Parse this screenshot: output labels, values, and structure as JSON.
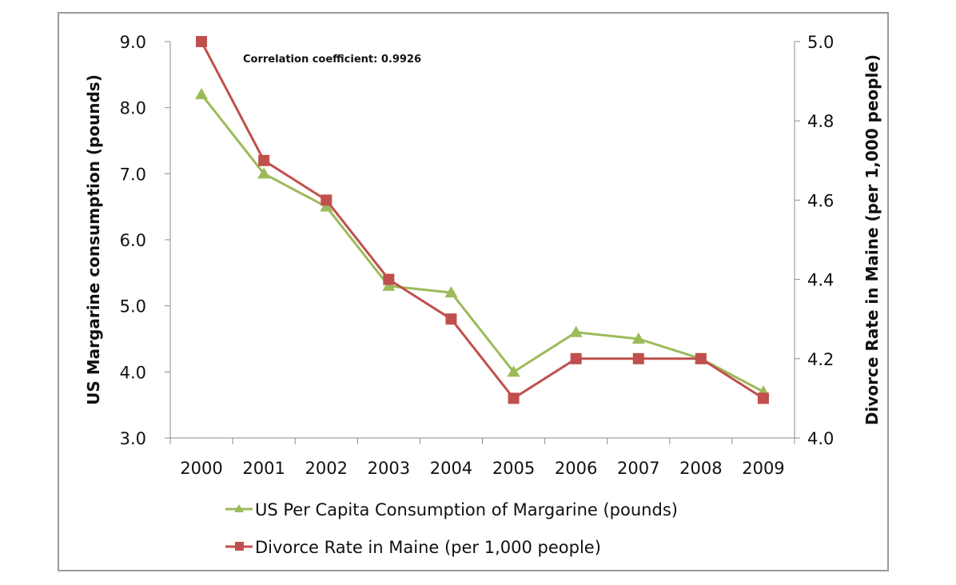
{
  "chart_data": {
    "type": "line",
    "title": "",
    "annotation": "Correlation coefficient: 0.9926",
    "categories": [
      "2000",
      "2001",
      "2002",
      "2003",
      "2004",
      "2005",
      "2006",
      "2007",
      "2008",
      "2009"
    ],
    "xlabel": "",
    "ylabel_left": "US Margarine consumption (pounds)",
    "ylabel_right": "Divorce Rate in Maine (per 1,000 people)",
    "ylim_left": [
      3.0,
      9.0
    ],
    "ylim_right": [
      4.0,
      5.0
    ],
    "yticks_left": [
      "3.0",
      "4.0",
      "5.0",
      "6.0",
      "7.0",
      "8.0",
      "9.0"
    ],
    "yticks_right": [
      "4.0",
      "4.2",
      "4.4",
      "4.6",
      "4.8",
      "5.0"
    ],
    "grid": false,
    "legend_position": "bottom",
    "series": [
      {
        "name": "US Per Capita Consumption of Margarine (pounds)",
        "axis": "left",
        "marker": "triangle",
        "color": "#9bbb59",
        "values": [
          8.2,
          7.0,
          6.5,
          5.3,
          5.2,
          4.0,
          4.6,
          4.5,
          4.2,
          3.7
        ]
      },
      {
        "name": "Divorce Rate in Maine (per 1,000 people)",
        "axis": "right",
        "marker": "square",
        "color": "#c0504d",
        "values": [
          5.0,
          4.7,
          4.6,
          4.4,
          4.3,
          4.1,
          4.2,
          4.2,
          4.2,
          4.1
        ]
      }
    ]
  }
}
